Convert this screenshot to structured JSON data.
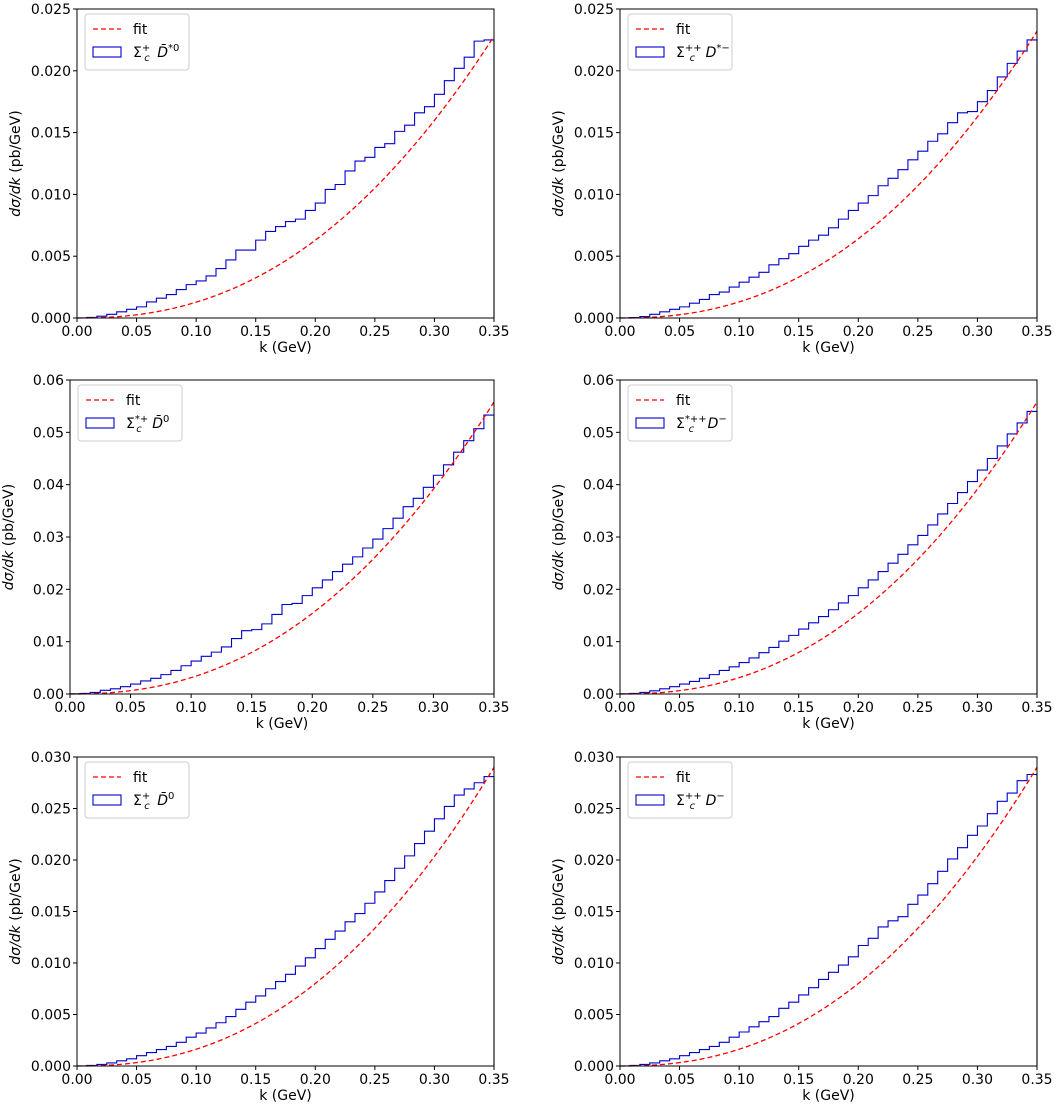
{
  "chart_data": [
    {
      "type": "histogram",
      "xlabel": "k (GeV)",
      "ylabel": "dσ/dk (pb/GeV)",
      "xlim": [
        0,
        0.35
      ],
      "ylim": [
        0,
        0.025
      ],
      "xticks": [
        "0.00",
        "0.05",
        "0.10",
        "0.15",
        "0.20",
        "0.25",
        "0.30",
        "0.35"
      ],
      "yticks": [
        "0.000",
        "0.005",
        "0.010",
        "0.015",
        "0.020",
        "0.025"
      ],
      "fit_peak": 0.0228,
      "legend": {
        "position": "top-left",
        "entries": [
          {
            "label": "fit",
            "style": "dashed-line",
            "color": "#ff0000"
          },
          {
            "label_base": "Σ",
            "label_sub": "c",
            "label_sup": "+",
            "label_tail": " D̄",
            "label_tail_sup": "*0",
            "style": "step-box",
            "color": "#0000cc"
          }
        ]
      },
      "histogram": [
        1e-05,
        5e-05,
        0.00015,
        0.0003,
        0.0005,
        0.0007,
        0.0009,
        0.0013,
        0.0016,
        0.0019,
        0.0023,
        0.0027,
        0.003,
        0.0034,
        0.004,
        0.0047,
        0.0055,
        0.0055,
        0.0063,
        0.007,
        0.0074,
        0.0078,
        0.008,
        0.0087,
        0.0093,
        0.0104,
        0.0108,
        0.0119,
        0.0127,
        0.013,
        0.0138,
        0.0141,
        0.0151,
        0.0156,
        0.0166,
        0.0171,
        0.0181,
        0.0192,
        0.0202,
        0.0211,
        0.0224,
        0.0225
      ]
    },
    {
      "type": "histogram",
      "xlabel": "k (GeV)",
      "ylabel": "dσ/dk (pb/GeV)",
      "xlim": [
        0,
        0.35
      ],
      "ylim": [
        0,
        0.025
      ],
      "xticks": [
        "0.00",
        "0.05",
        "0.10",
        "0.15",
        "0.20",
        "0.25",
        "0.30",
        "0.35"
      ],
      "yticks": [
        "0.000",
        "0.005",
        "0.010",
        "0.015",
        "0.020",
        "0.025"
      ],
      "fit_peak": 0.0232,
      "legend": {
        "position": "top-left",
        "entries": [
          {
            "label": "fit",
            "style": "dashed-line",
            "color": "#ff0000"
          },
          {
            "label_base": "Σ",
            "label_sub": "c",
            "label_sup": "++",
            "label_tail": " D",
            "label_tail_sup": "*−",
            "style": "step-box",
            "color": "#0000cc"
          }
        ]
      },
      "histogram": [
        1e-05,
        4e-05,
        0.00012,
        0.0003,
        0.0005,
        0.0007,
        0.0009,
        0.0012,
        0.0015,
        0.0019,
        0.0021,
        0.0025,
        0.0029,
        0.0033,
        0.0037,
        0.0043,
        0.0048,
        0.0052,
        0.0058,
        0.0063,
        0.0067,
        0.0073,
        0.008,
        0.0087,
        0.0093,
        0.0099,
        0.0107,
        0.0113,
        0.012,
        0.0128,
        0.0135,
        0.0143,
        0.0149,
        0.0158,
        0.0166,
        0.0167,
        0.0175,
        0.0184,
        0.0195,
        0.0206,
        0.0216,
        0.0225
      ]
    },
    {
      "type": "histogram",
      "xlabel": "k (GeV)",
      "ylabel": "dσ/dk (pb/GeV)",
      "xlim": [
        0,
        0.35
      ],
      "ylim": [
        0,
        0.06
      ],
      "xticks": [
        "0.00",
        "0.05",
        "0.10",
        "0.15",
        "0.20",
        "0.25",
        "0.30",
        "0.35"
      ],
      "yticks": [
        "0.00",
        "0.01",
        "0.02",
        "0.03",
        "0.04",
        "0.05",
        "0.06"
      ],
      "fit_peak": 0.0558,
      "legend": {
        "position": "top-left",
        "entries": [
          {
            "label": "fit",
            "style": "dashed-line",
            "color": "#ff0000"
          },
          {
            "label_base": "Σ",
            "label_sub": "c",
            "label_sup": "*+",
            "label_tail": " D̄",
            "label_tail_sup": "0",
            "style": "step-box",
            "color": "#0000cc"
          }
        ]
      },
      "histogram": [
        3e-05,
        0.0001,
        0.0003,
        0.0007,
        0.001,
        0.0014,
        0.0019,
        0.0025,
        0.003,
        0.0037,
        0.0045,
        0.0054,
        0.0063,
        0.0072,
        0.008,
        0.009,
        0.0106,
        0.0121,
        0.0123,
        0.0134,
        0.0152,
        0.0171,
        0.0173,
        0.0188,
        0.0203,
        0.0218,
        0.0234,
        0.0248,
        0.0262,
        0.0279,
        0.0296,
        0.0316,
        0.0336,
        0.0358,
        0.0374,
        0.0395,
        0.0418,
        0.0438,
        0.0462,
        0.0484,
        0.0507,
        0.0533
      ]
    },
    {
      "type": "histogram",
      "xlabel": "k (GeV)",
      "ylabel": "dσ/dk (pb/GeV)",
      "xlim": [
        0,
        0.35
      ],
      "ylim": [
        0,
        0.06
      ],
      "xticks": [
        "0.00",
        "0.05",
        "0.10",
        "0.15",
        "0.20",
        "0.25",
        "0.30",
        "0.35"
      ],
      "yticks": [
        "0.00",
        "0.01",
        "0.02",
        "0.03",
        "0.04",
        "0.05",
        "0.06"
      ],
      "fit_peak": 0.0558,
      "legend": {
        "position": "top-left",
        "entries": [
          {
            "label": "fit",
            "style": "dashed-line",
            "color": "#ff0000"
          },
          {
            "label_base": "Σ",
            "label_sub": "c",
            "label_sup": "*++",
            "label_tail": " D",
            "label_tail_sup": "−",
            "style": "step-box",
            "color": "#0000cc"
          }
        ]
      },
      "histogram": [
        3e-05,
        0.0001,
        0.0003,
        0.0006,
        0.001,
        0.0014,
        0.0019,
        0.0024,
        0.003,
        0.0037,
        0.0045,
        0.0052,
        0.006,
        0.0069,
        0.0079,
        0.0089,
        0.0101,
        0.0112,
        0.0124,
        0.0136,
        0.0148,
        0.0161,
        0.0174,
        0.0188,
        0.0203,
        0.0218,
        0.0234,
        0.025,
        0.0267,
        0.0285,
        0.0303,
        0.0323,
        0.0344,
        0.0364,
        0.0385,
        0.0406,
        0.0428,
        0.045,
        0.0474,
        0.0497,
        0.0518,
        0.054
      ]
    },
    {
      "type": "histogram",
      "xlabel": "k (GeV)",
      "ylabel": "dσ/dk (pb/GeV)",
      "xlim": [
        0,
        0.35
      ],
      "ylim": [
        0,
        0.03
      ],
      "xticks": [
        "0.00",
        "0.05",
        "0.10",
        "0.15",
        "0.20",
        "0.25",
        "0.30",
        "0.35"
      ],
      "yticks": [
        "0.000",
        "0.005",
        "0.010",
        "0.015",
        "0.020",
        "0.025",
        "0.030"
      ],
      "fit_peak": 0.029,
      "legend": {
        "position": "top-left",
        "entries": [
          {
            "label": "fit",
            "style": "dashed-line",
            "color": "#ff0000"
          },
          {
            "label_base": "Σ",
            "label_sub": "c",
            "label_sup": "+",
            "label_tail": " D̄",
            "label_tail_sup": "0",
            "style": "step-box",
            "color": "#0000cc"
          }
        ]
      },
      "histogram": [
        1e-05,
        5e-05,
        0.00015,
        0.0003,
        0.0005,
        0.0007,
        0.001,
        0.0013,
        0.0016,
        0.0019,
        0.0023,
        0.0028,
        0.0032,
        0.0037,
        0.0042,
        0.0048,
        0.0055,
        0.0062,
        0.0068,
        0.0075,
        0.0082,
        0.0089,
        0.0097,
        0.0105,
        0.0114,
        0.0123,
        0.0131,
        0.014,
        0.0148,
        0.0158,
        0.0169,
        0.018,
        0.0192,
        0.0204,
        0.0216,
        0.0228,
        0.024,
        0.0252,
        0.0263,
        0.0269,
        0.0275,
        0.0281
      ]
    },
    {
      "type": "histogram",
      "xlabel": "k (GeV)",
      "ylabel": "dσ/dk (pb/GeV)",
      "xlim": [
        0,
        0.35
      ],
      "ylim": [
        0,
        0.03
      ],
      "xticks": [
        "0.00",
        "0.05",
        "0.10",
        "0.15",
        "0.20",
        "0.25",
        "0.30",
        "0.35"
      ],
      "yticks": [
        "0.000",
        "0.005",
        "0.010",
        "0.015",
        "0.020",
        "0.025",
        "0.030"
      ],
      "fit_peak": 0.029,
      "legend": {
        "position": "top-left",
        "entries": [
          {
            "label": "fit",
            "style": "dashed-line",
            "color": "#ff0000"
          },
          {
            "label_base": "Σ",
            "label_sub": "c",
            "label_sup": "++",
            "label_tail": " D",
            "label_tail_sup": "−",
            "style": "step-box",
            "color": "#0000cc"
          }
        ]
      },
      "histogram": [
        1e-05,
        5e-05,
        0.00015,
        0.0003,
        0.0005,
        0.0007,
        0.001,
        0.0013,
        0.0016,
        0.0019,
        0.0023,
        0.0028,
        0.0033,
        0.0038,
        0.0043,
        0.0048,
        0.0056,
        0.0062,
        0.0069,
        0.0076,
        0.0084,
        0.0091,
        0.0098,
        0.0106,
        0.0117,
        0.0124,
        0.0135,
        0.0141,
        0.0145,
        0.0157,
        0.0166,
        0.0177,
        0.0189,
        0.0201,
        0.0212,
        0.0224,
        0.0233,
        0.0245,
        0.0257,
        0.0265,
        0.0277,
        0.0283
      ]
    }
  ]
}
